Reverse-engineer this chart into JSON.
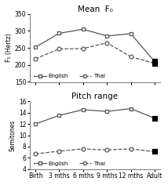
{
  "top_chart": {
    "title": "Mean  F₀",
    "ylabel": "F₀ (Hertz)",
    "ylim": [
      150,
      350
    ],
    "yticks": [
      150,
      200,
      250,
      300,
      350
    ],
    "english": [
      252,
      293,
      305,
      285,
      292,
      210
    ],
    "thai": [
      218,
      247,
      248,
      265,
      224,
      205
    ]
  },
  "bottom_chart": {
    "title": "Pitch range",
    "ylabel": "Semitones",
    "ylim": [
      4,
      16
    ],
    "yticks": [
      4,
      6,
      8,
      10,
      12,
      14,
      16
    ],
    "english": [
      12.0,
      13.5,
      14.5,
      14.2,
      14.7,
      13.0
    ],
    "thai": [
      6.7,
      7.2,
      7.6,
      7.4,
      7.6,
      7.1
    ]
  },
  "xticklabels": [
    "Birth",
    "3 mths",
    "6 mths",
    "9 mths",
    "12 mths",
    "Adult"
  ],
  "background_color": "#ffffff",
  "line_color": "#555555",
  "legend_english": "English",
  "legend_thai": "Thai"
}
